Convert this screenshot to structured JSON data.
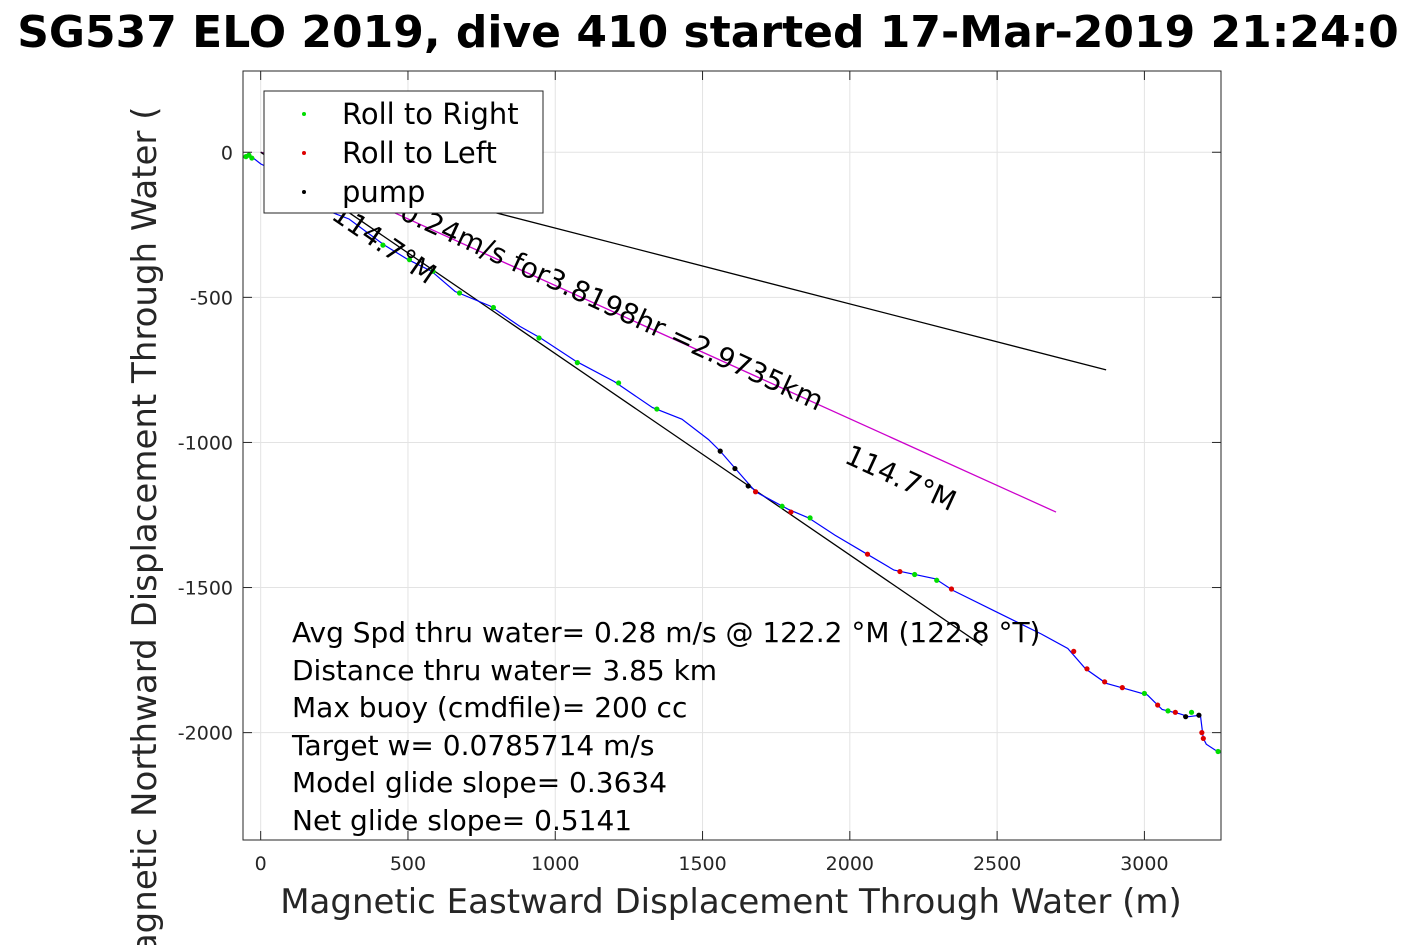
{
  "chart_data": {
    "type": "line",
    "title": "SG537 ELO 2019, dive 410 started 17-Mar-2019 21:24:0",
    "xlabel": "Magnetic Eastward Displacement Through Water (m)",
    "ylabel": "Magnetic Northward Displacement Through Water (",
    "xlim": [
      -60,
      3260
    ],
    "ylim": [
      -2370,
      280
    ],
    "xticks": [
      0,
      500,
      1000,
      1500,
      2000,
      2500,
      3000
    ],
    "yticks": [
      0,
      -500,
      -1000,
      -1500,
      -2000
    ],
    "grid": true,
    "legend": {
      "position": "top-left",
      "entries": [
        {
          "label": "Roll to Right",
          "color": "#00dd00"
        },
        {
          "label": "Roll to Left",
          "color": "#dd0000"
        },
        {
          "label": "pump",
          "color": "#000000"
        }
      ]
    },
    "track": {
      "color": "#0000ff",
      "points": [
        [
          -60,
          -20
        ],
        [
          -50,
          -10
        ],
        [
          -40,
          -5
        ],
        [
          -25,
          -20
        ],
        [
          0,
          -40
        ],
        [
          60,
          -70
        ],
        [
          150,
          -140
        ],
        [
          210,
          -195
        ],
        [
          300,
          -230
        ],
        [
          420,
          -320
        ],
        [
          500,
          -370
        ],
        [
          580,
          -410
        ],
        [
          660,
          -480
        ],
        [
          780,
          -530
        ],
        [
          880,
          -600
        ],
        [
          950,
          -640
        ],
        [
          1070,
          -720
        ],
        [
          1200,
          -790
        ],
        [
          1330,
          -880
        ],
        [
          1430,
          -920
        ],
        [
          1520,
          -990
        ],
        [
          1560,
          -1030
        ],
        [
          1620,
          -1100
        ],
        [
          1680,
          -1170
        ],
        [
          1790,
          -1230
        ],
        [
          1860,
          -1260
        ],
        [
          1950,
          -1320
        ],
        [
          2050,
          -1380
        ],
        [
          2150,
          -1440
        ],
        [
          2290,
          -1470
        ],
        [
          2350,
          -1510
        ],
        [
          2490,
          -1580
        ],
        [
          2590,
          -1630
        ],
        [
          2650,
          -1660
        ],
        [
          2740,
          -1710
        ],
        [
          2800,
          -1780
        ],
        [
          2870,
          -1830
        ],
        [
          2940,
          -1850
        ],
        [
          3010,
          -1870
        ],
        [
          3060,
          -1920
        ],
        [
          3120,
          -1935
        ],
        [
          3150,
          -1945
        ],
        [
          3190,
          -1940
        ],
        [
          3200,
          -2020
        ],
        [
          3210,
          -2040
        ],
        [
          3240,
          -2060
        ],
        [
          3260,
          -2070
        ]
      ],
      "roll_right_points": [
        [
          -50,
          -15
        ],
        [
          -40,
          -10
        ],
        [
          -30,
          -20
        ],
        [
          415,
          -320
        ],
        [
          505,
          -370
        ],
        [
          585,
          -410
        ],
        [
          675,
          -485
        ],
        [
          790,
          -535
        ],
        [
          945,
          -640
        ],
        [
          1075,
          -725
        ],
        [
          1215,
          -795
        ],
        [
          1345,
          -885
        ],
        [
          1770,
          -1220
        ],
        [
          1865,
          -1260
        ],
        [
          2220,
          -1455
        ],
        [
          2295,
          -1475
        ],
        [
          3000,
          -1865
        ],
        [
          3080,
          -1925
        ],
        [
          3160,
          -1930
        ],
        [
          3250,
          -2065
        ]
      ],
      "roll_left_points": [
        [
          1680,
          -1170
        ],
        [
          1800,
          -1240
        ],
        [
          2060,
          -1385
        ],
        [
          2170,
          -1445
        ],
        [
          2345,
          -1505
        ],
        [
          2760,
          -1720
        ],
        [
          2805,
          -1780
        ],
        [
          2865,
          -1825
        ],
        [
          2925,
          -1845
        ],
        [
          3045,
          -1905
        ],
        [
          3105,
          -1930
        ],
        [
          3195,
          -2000
        ],
        [
          3200,
          -2020
        ]
      ],
      "pump_points": [
        [
          1560,
          -1030
        ],
        [
          1610,
          -1090
        ],
        [
          1655,
          -1150
        ],
        [
          3140,
          -1945
        ],
        [
          3185,
          -1940
        ]
      ]
    },
    "course_lines": [
      {
        "from": [
          0,
          0
        ],
        "to": [
          2870,
          -750
        ],
        "color": "#000000"
      },
      {
        "from": [
          0,
          0
        ],
        "to": [
          2700,
          -1240
        ],
        "color": "#cc00cc"
      },
      {
        "from": [
          0,
          0
        ],
        "to": [
          2450,
          -1700
        ],
        "color": "#000000"
      }
    ],
    "annotations": {
      "speed_text": "0.24m/s for3.8198hr =2.9735km",
      "heading_upper": "114.7°M",
      "heading_lower": "114.7°M"
    },
    "stats": [
      "Avg Spd thru water=  0.28 m/s @ 122.2 °M (122.8 °T)",
      "Distance thru water=  3.85 km",
      "Max buoy (cmdfile)= 200 cc",
      "Target w= 0.0785714 m/s",
      "Model glide slope= 0.3634",
      "Net glide slope= 0.5141"
    ]
  }
}
